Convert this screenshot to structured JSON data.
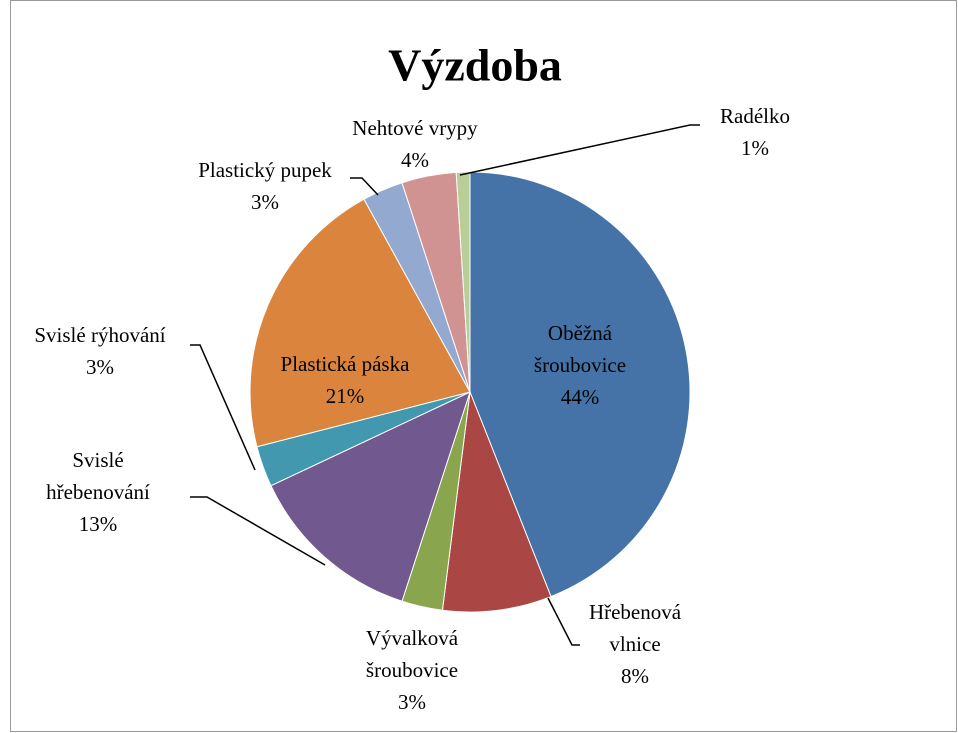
{
  "chart_data": {
    "type": "pie",
    "title": "Výzdoba",
    "categories": [
      "Oběžná\nšroubovice",
      "Hřebenová\nvlnice",
      "Vývalková\nšroubovice",
      "Svislé\nhřebenování",
      "Svislé rýhování",
      "Plastická páska",
      "Plastický pupek",
      "Nehtové vrypy",
      "Radélko"
    ],
    "values": [
      44,
      8,
      3,
      13,
      3,
      21,
      3,
      4,
      1
    ],
    "value_labels": [
      "44%",
      "8%",
      "3%",
      "13%",
      "3%",
      "21%",
      "3%",
      "4%",
      "1%"
    ],
    "colors": [
      "#4572a7",
      "#aa4643",
      "#89a54e",
      "#71588f",
      "#4198af",
      "#db843d",
      "#93a9cf",
      "#d19392",
      "#b9cd96"
    ]
  }
}
